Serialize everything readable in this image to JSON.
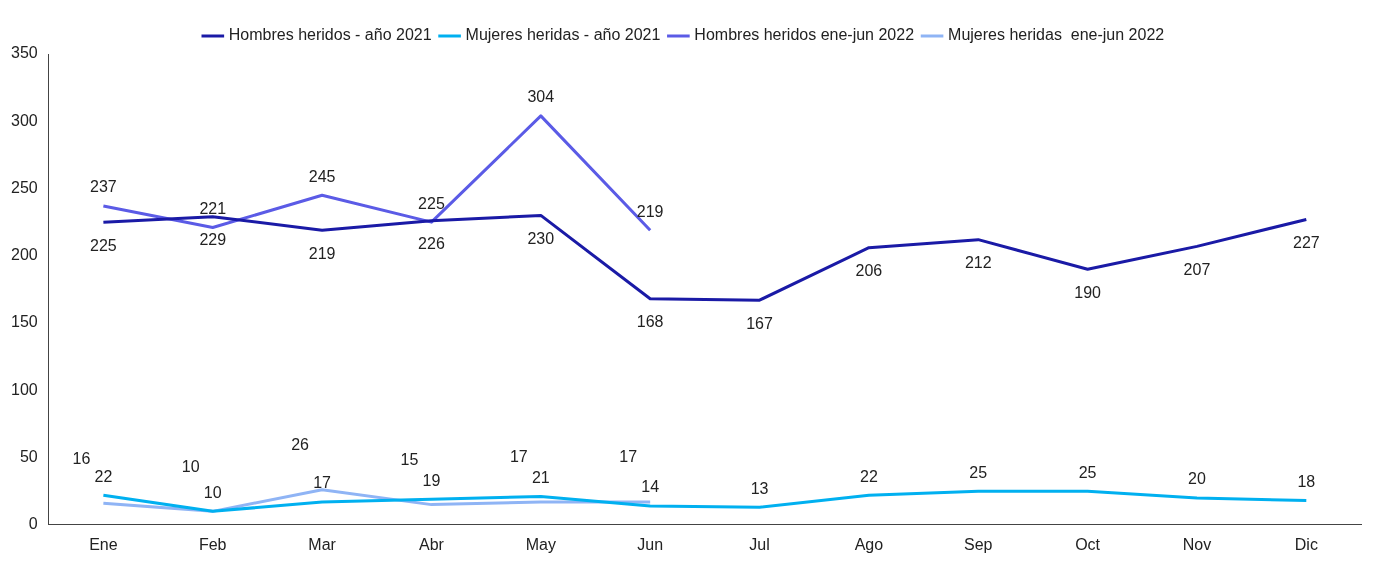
{
  "chart_data": {
    "type": "line",
    "categories": [
      "Ene",
      "Feb",
      "Mar",
      "Abr",
      "May",
      "Jun",
      "Jul",
      "Ago",
      "Sep",
      "Oct",
      "Nov",
      "Dic"
    ],
    "series": [
      {
        "name": "Hombres heridos - año 2021",
        "color": "#1a1aa6",
        "values": [
          225,
          229,
          219,
          226,
          230,
          168,
          167,
          206,
          212,
          190,
          207,
          227
        ]
      },
      {
        "name": "Mujeres heridas - año 2021",
        "color": "#00b0f0",
        "values": [
          22,
          10,
          17,
          19,
          21,
          14,
          13,
          22,
          25,
          25,
          20,
          18
        ]
      },
      {
        "name": "Hombres heridos ene-jun 2022",
        "color": "#5b5be6",
        "values": [
          237,
          221,
          245,
          225,
          304,
          219,
          null,
          null,
          null,
          null,
          null,
          null
        ]
      },
      {
        "name": "Mujeres heridas  ene-jun 2022",
        "color": "#8fb4f5",
        "values": [
          16,
          10,
          26,
          15,
          17,
          17,
          null,
          null,
          null,
          null,
          null,
          null
        ]
      }
    ],
    "ylim": [
      0,
      350
    ],
    "yticks": [
      0,
      50,
      100,
      150,
      200,
      250,
      300,
      350
    ],
    "grid": false,
    "legend": "top",
    "marker": "none",
    "line_style": "solid",
    "data_labels": true
  }
}
